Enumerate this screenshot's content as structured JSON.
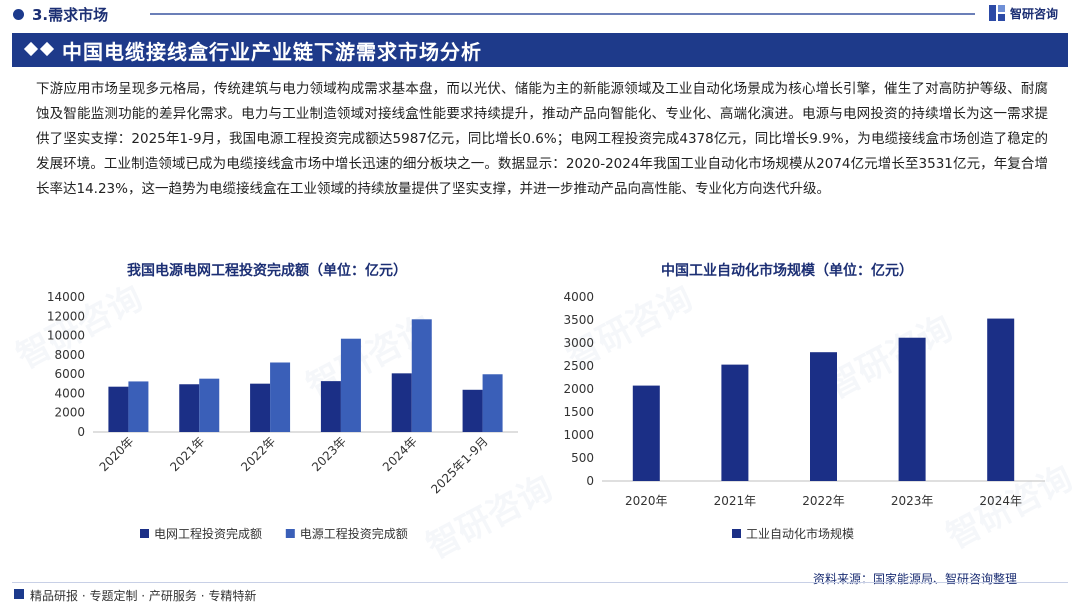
{
  "header": {
    "section_label": "3.需求市场",
    "logo_text": "智研咨询",
    "title": "中国电缆接线盒行业产业链下游需求市场分析"
  },
  "paragraph": "下游应用市场呈现多元格局，传统建筑与电力领域构成需求基本盘，而以光伏、储能为主的新能源领域及工业自动化场景成为核心增长引擎，催生了对高防护等级、耐腐蚀及智能监测功能的差异化需求。电力与工业制造领域对接线盒性能要求持续提升，推动产品向智能化、专业化、高端化演进。电源与电网投资的持续增长为这一需求提供了坚实支撑：2025年1-9月，我国电源工程投资完成额达5987亿元，同比增长0.6%；电网工程投资完成4378亿元，同比增长9.9%，为电缆接线盒市场创造了稳定的发展环境。工业制造领域已成为电缆接线盒市场中增长迅速的细分板块之一。数据显示：2020-2024年我国工业自动化市场规模从2074亿元增长至3531亿元，年复合增长率达14.23%，这一趋势为电缆接线盒在工业领域的持续放量提供了坚实支撑，并进一步推动产品向高性能、专业化方向迭代升级。",
  "watermark": "智研咨询",
  "chart_data": [
    {
      "type": "bar",
      "title": "我国电源电网工程投资完成额（单位：亿元）",
      "categories": [
        "2020年",
        "2021年",
        "2022年",
        "2023年",
        "2024年",
        "2025年1-9月"
      ],
      "series": [
        {
          "name": "电网工程投资完成额",
          "values": [
            4699,
            4951,
            5012,
            5275,
            6083,
            4378
          ],
          "color": "#1b2f86"
        },
        {
          "name": "电源工程投资完成额",
          "values": [
            5244,
            5530,
            7208,
            9675,
            11687,
            5987
          ],
          "color": "#3a5fb8"
        }
      ],
      "yticks": [
        0,
        2000,
        4000,
        6000,
        8000,
        10000,
        12000,
        14000
      ],
      "ylim": [
        0,
        14000
      ],
      "legend": "bottom"
    },
    {
      "type": "bar",
      "title": "中国工业自动化市场规模（单位：亿元）",
      "categories": [
        "2020年",
        "2021年",
        "2022年",
        "2023年",
        "2024年"
      ],
      "series": [
        {
          "name": "工业自动化市场规模",
          "values": [
            2074,
            2530,
            2800,
            3115,
            3531
          ],
          "color": "#1b2f86"
        }
      ],
      "yticks": [
        0,
        500,
        1000,
        1500,
        2000,
        2500,
        3000,
        3500,
        4000
      ],
      "ylim": [
        0,
        4000
      ],
      "legend": "bottom"
    }
  ],
  "footer": {
    "left": "精品研报 · 专题定制 · 产研服务 · 专精特新",
    "source": "资料来源：国家能源局、智研咨询整理"
  }
}
